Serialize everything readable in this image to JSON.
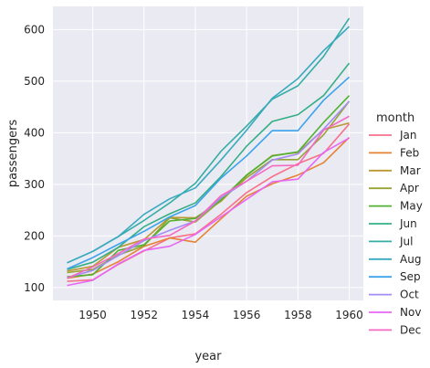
{
  "chart_data": {
    "type": "line",
    "xlabel": "year",
    "ylabel": "passengers",
    "xlim": [
      1948.45,
      1960.55
    ],
    "ylim": [
      75,
      645
    ],
    "xticks": [
      1950,
      1952,
      1954,
      1956,
      1958,
      1960
    ],
    "yticks": [
      100,
      200,
      300,
      400,
      500,
      600
    ],
    "grid": true,
    "legend": {
      "title": "month",
      "placement": "right"
    },
    "x": [
      1949,
      1950,
      1951,
      1952,
      1953,
      1954,
      1955,
      1956,
      1957,
      1958,
      1959,
      1960
    ],
    "series": [
      {
        "name": "Jan",
        "color": "#f77189",
        "values": [
          112,
          115,
          145,
          171,
          196,
          204,
          242,
          284,
          315,
          340,
          360,
          417
        ]
      },
      {
        "name": "Feb",
        "color": "#e68332",
        "values": [
          118,
          126,
          150,
          180,
          196,
          188,
          233,
          277,
          301,
          318,
          342,
          391
        ]
      },
      {
        "name": "Mar",
        "color": "#bb9832",
        "values": [
          132,
          141,
          178,
          193,
          236,
          235,
          267,
          317,
          356,
          362,
          406,
          419
        ]
      },
      {
        "name": "Apr",
        "color": "#97a431",
        "values": [
          129,
          135,
          163,
          181,
          235,
          227,
          269,
          313,
          348,
          348,
          396,
          461
        ]
      },
      {
        "name": "May",
        "color": "#50b131",
        "values": [
          121,
          125,
          172,
          183,
          229,
          234,
          270,
          318,
          355,
          363,
          420,
          472
        ]
      },
      {
        "name": "Jun",
        "color": "#34af84",
        "values": [
          135,
          149,
          178,
          218,
          243,
          264,
          315,
          374,
          422,
          435,
          472,
          535
        ]
      },
      {
        "name": "Jul",
        "color": "#36ada4",
        "values": [
          148,
          170,
          199,
          230,
          264,
          302,
          364,
          413,
          465,
          491,
          548,
          622
        ]
      },
      {
        "name": "Aug",
        "color": "#38aabf",
        "values": [
          148,
          170,
          199,
          242,
          272,
          293,
          347,
          405,
          467,
          505,
          559,
          606
        ]
      },
      {
        "name": "Sep",
        "color": "#3ba3ec",
        "values": [
          136,
          158,
          184,
          209,
          237,
          259,
          312,
          355,
          404,
          404,
          463,
          508
        ]
      },
      {
        "name": "Oct",
        "color": "#a48cf4",
        "values": [
          119,
          133,
          162,
          191,
          211,
          229,
          274,
          306,
          347,
          359,
          407,
          461
        ]
      },
      {
        "name": "Nov",
        "color": "#e866f4",
        "values": [
          104,
          114,
          146,
          172,
          180,
          203,
          237,
          271,
          305,
          310,
          362,
          390
        ]
      },
      {
        "name": "Dec",
        "color": "#f668c2",
        "values": [
          118,
          140,
          166,
          194,
          201,
          229,
          278,
          306,
          336,
          337,
          405,
          432
        ]
      }
    ]
  }
}
